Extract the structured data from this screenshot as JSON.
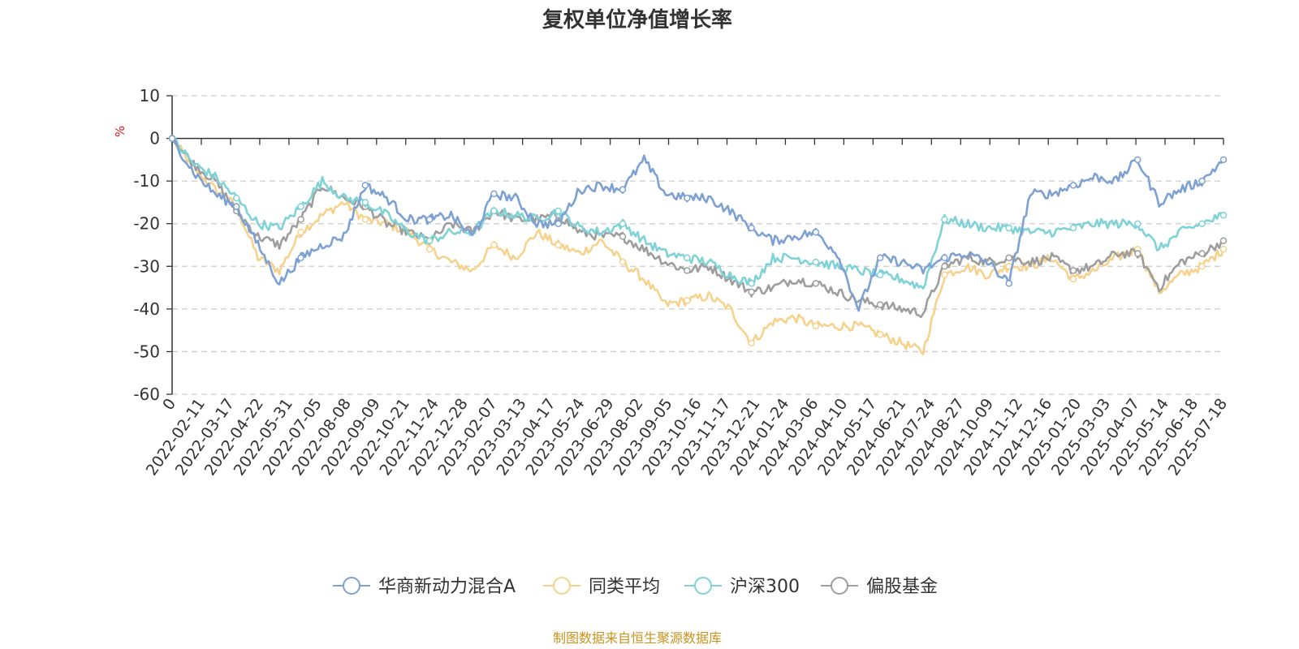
{
  "chart_data": {
    "type": "line",
    "title": "复权单位净值增长率",
    "ylabel": "%",
    "ylim": [
      -60,
      10
    ],
    "yticks": [
      10,
      0,
      -10,
      -20,
      -30,
      -40,
      -50,
      -60
    ],
    "grid": "horizontal dashed",
    "legend_position": "bottom-center",
    "source": "制图数据来自恒生聚源数据库",
    "x_tick_labels": [
      "0",
      "2022-02-11",
      "2022-03-17",
      "2022-04-22",
      "2022-05-31",
      "2022-07-05",
      "2022-08-08",
      "2022-09-09",
      "2022-10-21",
      "2022-11-24",
      "2022-12-28",
      "2023-02-07",
      "2023-03-13",
      "2023-04-17",
      "2023-05-24",
      "2023-06-29",
      "2023-08-02",
      "2023-09-05",
      "2023-10-16",
      "2023-11-17",
      "2023-12-21",
      "2024-01-24",
      "2024-03-06",
      "2024-04-10",
      "2024-05-17",
      "2024-06-21",
      "2024-07-24",
      "2024-08-27",
      "2024-10-09",
      "2024-11-12",
      "2024-12-16",
      "2025-01-20",
      "2025-03-03",
      "2025-04-07",
      "2025-05-14",
      "2025-06-18",
      "2025-07-18"
    ],
    "series": [
      {
        "name": "华商新动力混合A",
        "color": "#7ea1d4",
        "values": [
          0,
          -8,
          -13,
          -16,
          -25,
          -34,
          -28,
          -25,
          -23,
          -11,
          -14,
          -19,
          -19,
          -18,
          -23,
          -13,
          -14,
          -20,
          -20,
          -12,
          -11,
          -12,
          -5,
          -13,
          -14,
          -14,
          -17,
          -21,
          -24,
          -23,
          -22,
          -27,
          -40,
          -28,
          -29,
          -31,
          -28,
          -27,
          -29,
          -34,
          -13,
          -13,
          -11,
          -9,
          -10,
          -5,
          -15,
          -12,
          -10,
          -5
        ]
      },
      {
        "name": "同类平均",
        "color": "#f7d28d",
        "values": [
          0,
          -7,
          -12,
          -16,
          -28,
          -31,
          -22,
          -18,
          -15,
          -19,
          -20,
          -22,
          -26,
          -29,
          -31,
          -25,
          -28,
          -22,
          -25,
          -27,
          -24,
          -29,
          -33,
          -39,
          -38,
          -37,
          -40,
          -48,
          -43,
          -42,
          -44,
          -44,
          -44,
          -46,
          -48,
          -50,
          -32,
          -30,
          -32,
          -30,
          -30,
          -28,
          -33,
          -31,
          -28,
          -26,
          -36,
          -32,
          -30,
          -26
        ]
      },
      {
        "name": "沪深300",
        "color": "#7fd3d6",
        "values": [
          0,
          -6,
          -9,
          -14,
          -20,
          -21,
          -16,
          -10,
          -14,
          -15,
          -18,
          -22,
          -24,
          -22,
          -22,
          -17,
          -18,
          -19,
          -17,
          -21,
          -22,
          -20,
          -24,
          -27,
          -28,
          -29,
          -32,
          -34,
          -28,
          -28,
          -29,
          -30,
          -31,
          -32,
          -33,
          -35,
          -19,
          -20,
          -21,
          -21,
          -22,
          -22,
          -21,
          -20,
          -20,
          -20,
          -26,
          -22,
          -20,
          -18
        ]
      },
      {
        "name": "偏股基金",
        "color": "#9e9e9e",
        "values": [
          0,
          -6,
          -10,
          -17,
          -23,
          -25,
          -19,
          -11,
          -14,
          -16,
          -20,
          -22,
          -24,
          -20,
          -22,
          -17,
          -19,
          -19,
          -18,
          -22,
          -23,
          -23,
          -26,
          -29,
          -31,
          -30,
          -33,
          -36,
          -35,
          -33,
          -34,
          -36,
          -38,
          -39,
          -40,
          -41,
          -30,
          -28,
          -29,
          -28,
          -29,
          -28,
          -31,
          -30,
          -27,
          -27,
          -35,
          -29,
          -27,
          -24
        ]
      }
    ]
  }
}
